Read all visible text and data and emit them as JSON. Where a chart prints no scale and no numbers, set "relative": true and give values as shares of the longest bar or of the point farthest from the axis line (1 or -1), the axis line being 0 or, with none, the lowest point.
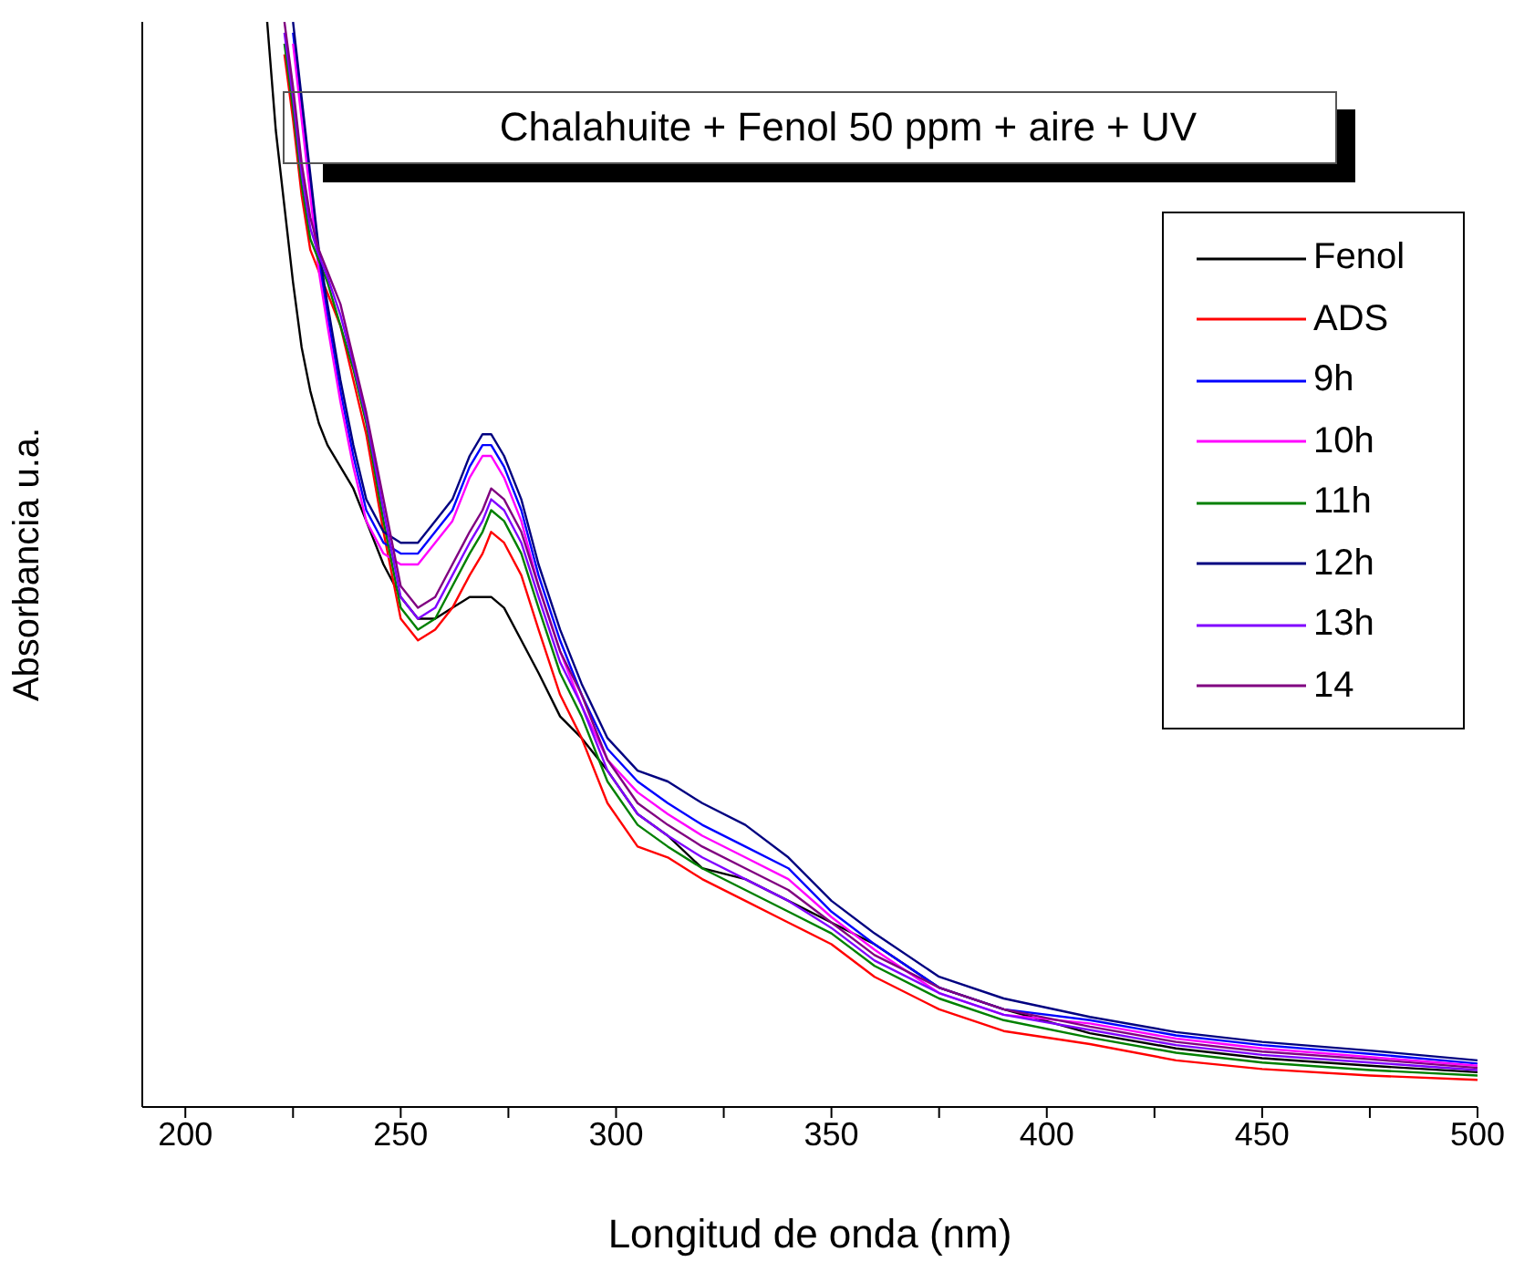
{
  "chart_data": {
    "type": "line",
    "title": "Chalahuite + Fenol 50 ppm + aire + UV",
    "xlabel": "Longitud de onda (nm)",
    "ylabel": "Absorbancia u.a.",
    "relative": true,
    "legend": "top right",
    "x": [
      219,
      221,
      223,
      225,
      227,
      229,
      231,
      233,
      236,
      239,
      242,
      246,
      250,
      254,
      258,
      262,
      266,
      269,
      271,
      274,
      278,
      282,
      287,
      292,
      298,
      305,
      312,
      320,
      330,
      340,
      350,
      360,
      375,
      390,
      410,
      430,
      450,
      475,
      500
    ],
    "xlim": [
      190,
      500
    ],
    "xticks": [
      200,
      {
        "value": 225,
        "label": null
      },
      250,
      {
        "value": 275,
        "label": null
      },
      300,
      {
        "value": 325,
        "label": null
      },
      350,
      {
        "value": 375,
        "label": null
      },
      400,
      {
        "value": 425,
        "label": null
      },
      450,
      {
        "value": 475,
        "label": null
      },
      500
    ],
    "series": [
      {
        "name": "Fenol",
        "color": "#000000",
        "values": [
          1.0,
          0.9,
          0.83,
          0.76,
          0.7,
          0.66,
          0.63,
          0.61,
          0.59,
          0.57,
          0.54,
          0.5,
          0.47,
          0.45,
          0.45,
          0.46,
          0.47,
          0.47,
          0.47,
          0.46,
          0.43,
          0.4,
          0.36,
          0.34,
          0.31,
          0.27,
          0.25,
          0.22,
          0.21,
          0.19,
          0.17,
          0.15,
          0.11,
          0.09,
          0.068,
          0.054,
          0.045,
          0.038,
          0.032
        ]
      },
      {
        "name": "ADS",
        "color": "#ff0000",
        "values": [
          null,
          null,
          0.97,
          0.91,
          0.84,
          0.79,
          0.77,
          0.75,
          0.72,
          0.67,
          0.62,
          0.53,
          0.45,
          0.43,
          0.44,
          0.46,
          0.49,
          0.51,
          0.53,
          0.52,
          0.49,
          0.44,
          0.38,
          0.34,
          0.28,
          0.24,
          0.23,
          0.21,
          0.19,
          0.17,
          0.15,
          0.12,
          0.09,
          0.07,
          0.058,
          0.043,
          0.035,
          0.029,
          0.025
        ]
      },
      {
        "name": "9h",
        "color": "#0000ff",
        "values": [
          null,
          null,
          null,
          0.99,
          0.92,
          0.85,
          0.78,
          0.73,
          0.66,
          0.6,
          0.55,
          0.52,
          0.51,
          0.51,
          0.53,
          0.55,
          0.59,
          0.61,
          0.61,
          0.59,
          0.55,
          0.49,
          0.43,
          0.38,
          0.33,
          0.3,
          0.28,
          0.26,
          0.24,
          0.22,
          0.18,
          0.15,
          0.11,
          0.09,
          0.08,
          0.066,
          0.057,
          0.049,
          0.04
        ]
      },
      {
        "name": "10h",
        "color": "#ff00ff",
        "values": [
          null,
          null,
          null,
          0.98,
          0.91,
          0.84,
          0.77,
          0.72,
          0.65,
          0.59,
          0.54,
          0.51,
          0.5,
          0.5,
          0.52,
          0.54,
          0.58,
          0.6,
          0.6,
          0.58,
          0.54,
          0.48,
          0.42,
          0.37,
          0.32,
          0.29,
          0.27,
          0.25,
          0.23,
          0.21,
          0.175,
          0.145,
          0.105,
          0.085,
          0.077,
          0.063,
          0.054,
          0.046,
          0.038
        ]
      },
      {
        "name": "11h",
        "color": "#008000",
        "values": [
          null,
          null,
          0.98,
          0.92,
          0.85,
          0.8,
          0.78,
          0.76,
          0.72,
          0.68,
          0.63,
          0.54,
          0.46,
          0.44,
          0.45,
          0.48,
          0.51,
          0.53,
          0.55,
          0.54,
          0.51,
          0.46,
          0.4,
          0.36,
          0.3,
          0.26,
          0.24,
          0.22,
          0.2,
          0.18,
          0.16,
          0.13,
          0.1,
          0.08,
          0.064,
          0.05,
          0.041,
          0.034,
          0.029
        ]
      },
      {
        "name": "12h",
        "color": "#000080",
        "values": [
          null,
          null,
          null,
          1.0,
          0.93,
          0.86,
          0.79,
          0.74,
          0.67,
          0.61,
          0.56,
          0.53,
          0.52,
          0.52,
          0.54,
          0.56,
          0.6,
          0.62,
          0.62,
          0.6,
          0.56,
          0.5,
          0.44,
          0.39,
          0.34,
          0.31,
          0.3,
          0.28,
          0.26,
          0.23,
          0.19,
          0.16,
          0.12,
          0.1,
          0.083,
          0.069,
          0.06,
          0.052,
          0.043
        ]
      },
      {
        "name": "13h",
        "color": "#8000ff",
        "values": [
          null,
          null,
          0.99,
          0.93,
          0.86,
          0.81,
          0.785,
          0.765,
          0.73,
          0.685,
          0.635,
          0.55,
          0.47,
          0.45,
          0.46,
          0.49,
          0.52,
          0.54,
          0.56,
          0.55,
          0.52,
          0.47,
          0.41,
          0.37,
          0.31,
          0.27,
          0.25,
          0.23,
          0.21,
          0.19,
          0.165,
          0.135,
          0.105,
          0.085,
          0.071,
          0.057,
          0.048,
          0.041,
          0.034
        ]
      },
      {
        "name": "14",
        "color": "#800080",
        "values": [
          null,
          null,
          1.0,
          0.94,
          0.87,
          0.82,
          0.79,
          0.77,
          0.74,
          0.69,
          0.64,
          0.56,
          0.48,
          0.46,
          0.47,
          0.5,
          0.53,
          0.55,
          0.57,
          0.56,
          0.53,
          0.48,
          0.42,
          0.38,
          0.32,
          0.28,
          0.26,
          0.24,
          0.22,
          0.2,
          0.17,
          0.14,
          0.11,
          0.09,
          0.074,
          0.06,
          0.051,
          0.044,
          0.036
        ]
      }
    ]
  }
}
